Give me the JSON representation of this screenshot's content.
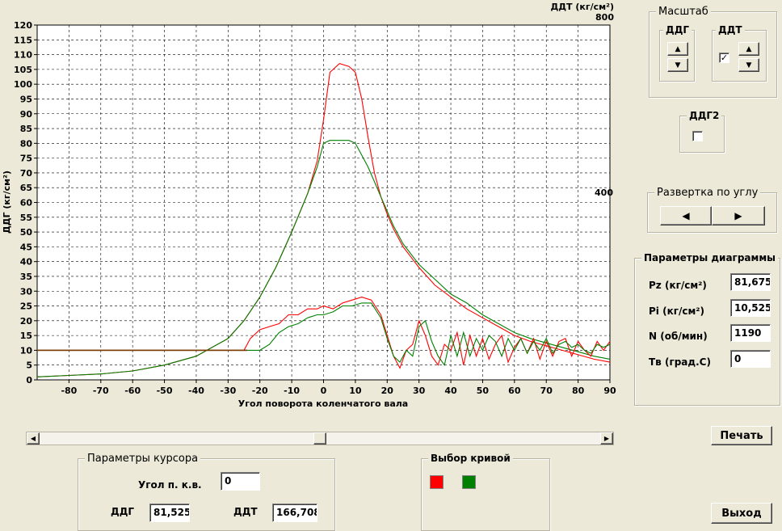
{
  "chart": {
    "ylabel": "ДДГ (кг/см²)",
    "xlabel": "Угол поворота коленчатого вала",
    "right_axis_title": "ДДТ (кг/см²)",
    "right_tick_top": "800",
    "right_tick_mid": "400"
  },
  "chart_data": {
    "type": "line",
    "xlim": [
      -90,
      90
    ],
    "ylim": [
      0,
      120
    ],
    "x_ticks": [
      -80,
      -70,
      -60,
      -50,
      -40,
      -30,
      -20,
      -10,
      0,
      10,
      20,
      30,
      40,
      50,
      60,
      70,
      80,
      90
    ],
    "y_ticks": [
      0,
      5,
      10,
      15,
      20,
      25,
      30,
      35,
      40,
      45,
      50,
      55,
      60,
      65,
      70,
      75,
      80,
      85,
      90,
      95,
      100,
      105,
      110,
      115,
      120
    ],
    "grid": true,
    "series": [
      {
        "color": "#ff0000",
        "x": [
          -90,
          -80,
          -70,
          -60,
          -50,
          -40,
          -30,
          -25,
          -20,
          -15,
          -10,
          -5,
          -2,
          0,
          2,
          5,
          8,
          10,
          12,
          14,
          16,
          18,
          20,
          22,
          25,
          30,
          35,
          40,
          45,
          50,
          55,
          60,
          65,
          70,
          75,
          80,
          85,
          90
        ],
        "y": [
          1,
          1.5,
          2,
          3,
          5,
          8,
          14,
          20,
          28,
          38,
          50,
          63,
          74,
          88,
          104,
          107,
          106,
          104,
          95,
          82,
          70,
          62,
          56,
          51,
          45,
          38,
          32,
          28,
          24,
          21,
          18,
          15,
          13,
          11.5,
          10,
          8.5,
          7,
          6
        ]
      },
      {
        "color": "#008000",
        "x": [
          -90,
          -80,
          -70,
          -60,
          -50,
          -40,
          -30,
          -25,
          -20,
          -15,
          -10,
          -5,
          -2,
          0,
          2,
          5,
          8,
          10,
          12,
          14,
          16,
          18,
          20,
          22,
          25,
          30,
          35,
          40,
          45,
          50,
          55,
          60,
          65,
          70,
          75,
          80,
          85,
          90
        ],
        "y": [
          1,
          1.5,
          2,
          3,
          5,
          8,
          14,
          20,
          28,
          38,
          50,
          63,
          72,
          80,
          81,
          81,
          81,
          80,
          76,
          72,
          67,
          62,
          57,
          52,
          46,
          39,
          34,
          29,
          26,
          22,
          19,
          16,
          14,
          12.5,
          11,
          9.5,
          8,
          7
        ]
      },
      {
        "color": "#ff0000",
        "x": [
          -90,
          -25,
          -23,
          -20,
          -17,
          -14,
          -11,
          -8,
          -5,
          -2,
          0,
          3,
          6,
          9,
          12,
          15,
          18,
          20,
          22,
          24,
          26,
          28,
          30,
          32,
          34,
          36,
          38,
          40,
          42,
          44,
          46,
          48,
          50,
          52,
          54,
          56,
          58,
          60,
          62,
          64,
          66,
          68,
          70,
          72,
          74,
          76,
          78,
          80,
          82,
          84,
          86,
          88,
          90
        ],
        "y": [
          10,
          10,
          14,
          17,
          18,
          19,
          22,
          22,
          24,
          24,
          25,
          24,
          26,
          27,
          28,
          27,
          22,
          15,
          8,
          4,
          10,
          12,
          20,
          15,
          8,
          5,
          12,
          10,
          16,
          5,
          15,
          8,
          14,
          7,
          12,
          15,
          6,
          11,
          14,
          9,
          14,
          7,
          13,
          8,
          13,
          14,
          8,
          13,
          10,
          8,
          13,
          10,
          13
        ]
      },
      {
        "color": "#008000",
        "x": [
          -90,
          -24,
          -20,
          -17,
          -14,
          -11,
          -8,
          -5,
          -2,
          0,
          3,
          6,
          9,
          12,
          15,
          18,
          20,
          22,
          24,
          26,
          28,
          30,
          32,
          34,
          36,
          38,
          40,
          42,
          44,
          46,
          48,
          50,
          52,
          54,
          56,
          58,
          60,
          62,
          64,
          66,
          68,
          70,
          72,
          74,
          76,
          78,
          80,
          82,
          84,
          86,
          88,
          90
        ],
        "y": [
          10,
          10,
          10,
          12,
          16,
          18,
          19,
          21,
          22,
          22,
          23,
          25,
          25,
          26,
          26,
          21,
          14,
          8,
          6,
          10,
          8,
          18,
          20,
          13,
          8,
          5,
          15,
          8,
          16,
          8,
          14,
          10,
          15,
          13,
          8,
          14,
          10,
          14,
          9,
          13,
          10,
          14,
          9,
          12,
          13,
          11,
          12,
          10,
          9,
          12,
          11,
          12
        ]
      }
    ]
  },
  "scale_group": {
    "title": "Масштаб",
    "ddg_title": "ДДГ",
    "ddt_title": "ДДТ",
    "ddt_checked": "✓"
  },
  "ddg2_group": {
    "title": "ДДГ2"
  },
  "sweep_group": {
    "title": "Развертка по углу",
    "left_arrow": "◀",
    "right_arrow": "▶"
  },
  "params_group": {
    "title": "Параметры диаграммы",
    "rows": [
      {
        "label": "Pz (кг/см²)",
        "value": "81,675"
      },
      {
        "label": "Pi (кг/см²)",
        "value": "10,525"
      },
      {
        "label": "N (об/мин)",
        "value": "1190"
      },
      {
        "label": "Тв (град.С)",
        "value": "0"
      }
    ]
  },
  "cursor_group": {
    "title": "Параметры курсора",
    "angle_label": "Угол п. к.в.",
    "angle_value": "0",
    "ddg_label": "ДДГ",
    "ddg_value": "81,525",
    "ddt_label": "ДДТ",
    "ddt_value": "166,708"
  },
  "curve_group": {
    "title": "Выбор кривой",
    "colors": [
      "#ff0000",
      "#008000"
    ]
  },
  "buttons": {
    "print": "Печать",
    "exit": "Выход"
  },
  "scrollbar": {
    "left": "◀",
    "right": "▶"
  }
}
